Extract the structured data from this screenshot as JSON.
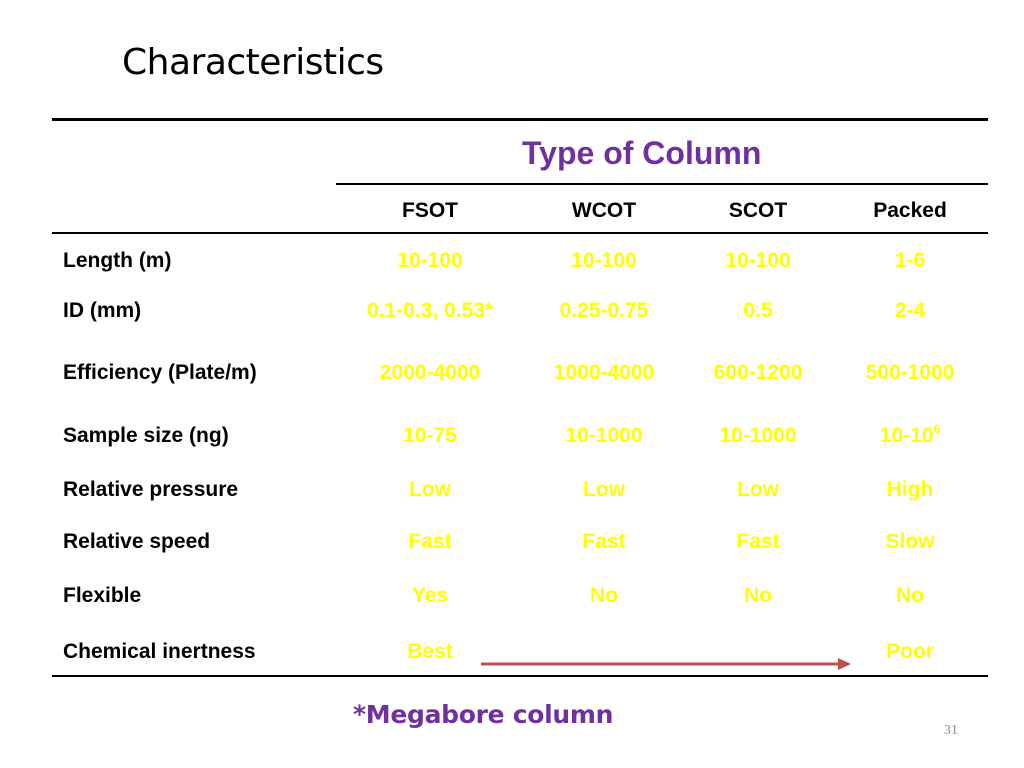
{
  "slide": {
    "title": "Characteristics",
    "footnote": "*Megabore column",
    "page_number": "31"
  },
  "table": {
    "group_header": "Type of Column",
    "columns": [
      "FSOT",
      "WCOT",
      "SCOT",
      "Packed"
    ],
    "rows": [
      {
        "label": "Length (m)",
        "cells": [
          "10-100",
          "10-100",
          "10-100",
          "1-6"
        ]
      },
      {
        "label": "ID (mm)",
        "cells": [
          "0.1-0.3, 0.53*",
          "0.25-0.75",
          "0.5",
          "2-4"
        ]
      },
      {
        "label": "Efficiency (Plate/m)",
        "cells": [
          "2000-4000",
          "1000-4000",
          "600-1200",
          "500-1000"
        ]
      },
      {
        "label": "Sample size (ng)",
        "cells": [
          "10-75",
          "10-1000",
          "10-1000",
          "10-10"
        ],
        "last_cell_superscript": "6"
      },
      {
        "label": "Relative pressure",
        "cells": [
          "Low",
          "Low",
          "Low",
          "High"
        ]
      },
      {
        "label": "Relative speed",
        "cells": [
          "Fast",
          "Fast",
          "Fast",
          "Slow"
        ]
      },
      {
        "label": "Flexible",
        "cells": [
          "Yes",
          "No",
          "No",
          "No"
        ]
      },
      {
        "label": "Chemical inertness",
        "cells": [
          "Best",
          "",
          "",
          "Poor"
        ]
      }
    ]
  },
  "colors": {
    "header_accent": "#7030a0",
    "value_text": "#ffff00",
    "arrow": "#c0504d",
    "rule": "#000000"
  },
  "icons": {
    "inertness_arrow": "arrow-right-icon"
  }
}
